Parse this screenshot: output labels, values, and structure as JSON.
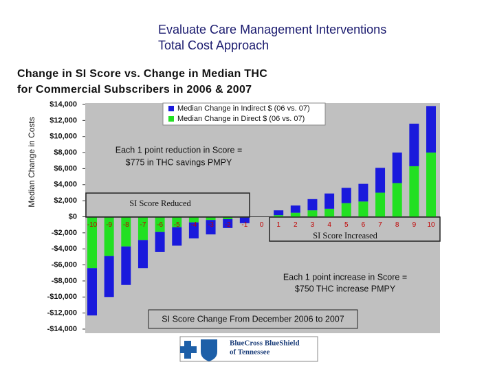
{
  "header": {
    "line1": "Evaluate Care Management Interventions",
    "line2": "Total Cost Approach"
  },
  "chart_data": {
    "type": "bar",
    "stacked": true,
    "title": [
      "Change in SI Score vs. Change in Median THC",
      "for Commercial Subscribers in 2006 & 2007"
    ],
    "y_label": "Median Change in Costs",
    "categories": [
      "-10",
      "-9",
      "-8",
      "-7",
      "-6",
      "-5",
      "-4",
      "-3",
      "-2",
      "-1",
      "0",
      "1",
      "2",
      "3",
      "4",
      "5",
      "6",
      "7",
      "8",
      "9",
      "10"
    ],
    "series": [
      {
        "name": "Median Change in Indirect $ (06 vs. 07)",
        "color": "#1a1adc",
        "values": [
          -5900,
          -5100,
          -4800,
          -3500,
          -2500,
          -2300,
          -2000,
          -1800,
          -1100,
          -700,
          0,
          600,
          900,
          1400,
          1900,
          1900,
          2200,
          3100,
          3800,
          5300,
          5800
        ]
      },
      {
        "name": "Median Change in Direct $ (06 vs. 07)",
        "color": "#22e022",
        "values": [
          -6400,
          -4900,
          -3700,
          -2900,
          -1900,
          -1300,
          -700,
          -400,
          -300,
          -100,
          0,
          200,
          500,
          800,
          1000,
          1700,
          1900,
          3000,
          4200,
          6300,
          8000
        ]
      }
    ],
    "ylim": [
      -14000,
      14000
    ],
    "yticks": [
      {
        "value": 14000,
        "label": "$14,000"
      },
      {
        "value": 12000,
        "label": "$12,000"
      },
      {
        "value": 10000,
        "label": "$10,000"
      },
      {
        "value": 8000,
        "label": "$8,000"
      },
      {
        "value": 6000,
        "label": "$6,000"
      },
      {
        "value": 4000,
        "label": "$4,000"
      },
      {
        "value": 2000,
        "label": "$2,000"
      },
      {
        "value": 0,
        "label": "$0"
      },
      {
        "value": -2000,
        "label": "-$2,000"
      },
      {
        "value": -4000,
        "label": "-$4,000"
      },
      {
        "value": -6000,
        "label": "-$6,000"
      },
      {
        "value": -8000,
        "label": "-$8,000"
      },
      {
        "value": -10000,
        "label": "-$10,000"
      },
      {
        "value": -12000,
        "label": "-$12,000"
      },
      {
        "value": -14000,
        "label": "-$14,000"
      }
    ],
    "annotations": {
      "reduction": [
        "Each 1 point reduction in Score =",
        "$775 in THC savings PMPY"
      ],
      "reduced_box": "SI Score Reduced",
      "increased_box": "SI Score Increased",
      "increase": [
        "Each 1 point increase in Score =",
        "$750 THC increase PMPY"
      ],
      "change_box": "SI Score Change From December 2006 to 2007"
    }
  },
  "logo": {
    "line1": "BlueCross BlueShield",
    "line2": "of Tennessee"
  }
}
